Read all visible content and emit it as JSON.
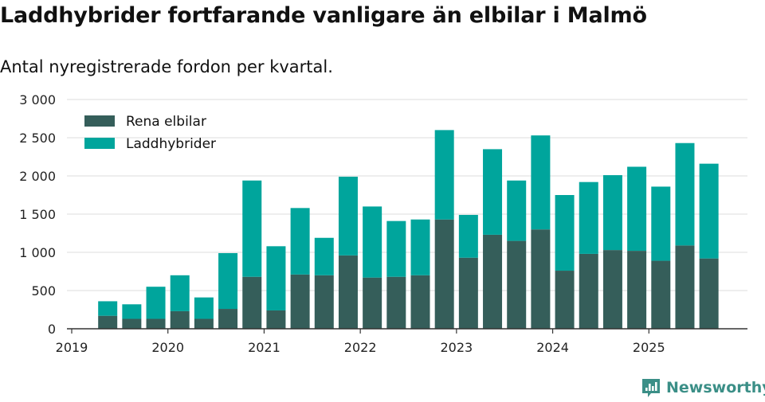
{
  "chart_data": {
    "type": "bar",
    "stacked": true,
    "title": "Laddhybrider fortfarande vanligare än elbilar i Malmö",
    "subtitle": "Antal nyregistrerade fordon per kvartal.",
    "xlabel": "",
    "ylabel": "",
    "ylim": [
      0,
      3000
    ],
    "yticks": [
      0,
      500,
      1000,
      1500,
      2000,
      2500,
      3000
    ],
    "ytick_labels": [
      "0",
      "500",
      "1 000",
      "1 500",
      "2 000",
      "2 500",
      "3 000"
    ],
    "xtick_labels": [
      "2019",
      "2020",
      "2021",
      "2022",
      "2023",
      "2024",
      "2025"
    ],
    "xtick_years": [
      2019,
      2020,
      2021,
      2022,
      2023,
      2024,
      2025
    ],
    "x_range": [
      2019.0,
      2026.0
    ],
    "bar_quarters": [
      2019.25,
      2019.5,
      2019.75,
      2020.0,
      2020.25,
      2020.5,
      2020.75,
      2021.0,
      2021.25,
      2021.5,
      2021.75,
      2022.0,
      2022.25,
      2022.5,
      2022.75,
      2023.0,
      2023.25,
      2023.5,
      2023.75,
      2024.0,
      2024.25,
      2024.5,
      2024.75,
      2025.0,
      2025.25,
      2025.5
    ],
    "grid": true,
    "legend_position": "top-left",
    "series": [
      {
        "name": "Rena elbilar",
        "color": "#355e5a",
        "values": [
          170,
          130,
          130,
          230,
          130,
          260,
          680,
          240,
          710,
          700,
          960,
          670,
          680,
          700,
          1430,
          930,
          1230,
          1150,
          1300,
          760,
          980,
          1030,
          1020,
          890,
          1090,
          920
        ]
      },
      {
        "name": "Laddhybrider",
        "color": "#00a59c",
        "values": [
          190,
          190,
          420,
          470,
          280,
          730,
          1260,
          840,
          870,
          490,
          1030,
          930,
          730,
          730,
          1170,
          560,
          1120,
          790,
          1230,
          990,
          940,
          980,
          1100,
          970,
          1340,
          1240
        ]
      }
    ]
  },
  "brand": {
    "name": "Newsworthy",
    "color": "#3b8f87"
  }
}
